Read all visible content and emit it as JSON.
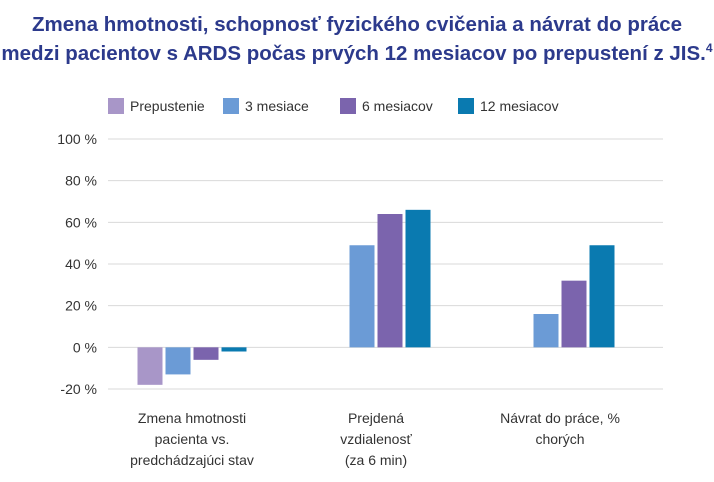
{
  "title_line1": "Zmena hmotnosti, schopnosť fyzického cvičenia a návrat do práce",
  "title_line2": "medzi pacientov s ARDS počas prvých 12 mesiacov po prepustení z JIS.",
  "title_ref": "4",
  "chart_data": {
    "type": "bar",
    "categories": [
      "Zmena hmotnosti pacienta vs. predchádzajúci stav",
      "Prejdená vzdialenosť (za 6 min)",
      "Návrat do práce, % chorých"
    ],
    "category_lines": [
      [
        "Zmena hmotnosti",
        "pacienta  vs.",
        "predchádzajúci stav"
      ],
      [
        "Prejdená",
        "vzdialenosť",
        "(za 6 min)"
      ],
      [
        "Návrat do práce, %",
        "chorých"
      ]
    ],
    "series": [
      {
        "name": "Prepustenie",
        "color": "#a896c8",
        "values": [
          -18,
          null,
          null
        ]
      },
      {
        "name": "3 mesiace",
        "color": "#6b9bd6",
        "values": [
          -13,
          49,
          16
        ]
      },
      {
        "name": "6 mesiacov",
        "color": "#7b64ad",
        "values": [
          -6,
          64,
          32
        ]
      },
      {
        "name": "12 mesiacov",
        "color": "#0a7ab0",
        "values": [
          -2,
          66,
          49
        ]
      }
    ],
    "yticks": [
      "100 %",
      "80 %",
      "60 %",
      "40 %",
      "20 %",
      "0 %",
      "-20 %"
    ],
    "ytick_values": [
      100,
      80,
      60,
      40,
      20,
      0,
      -20
    ],
    "ylim": [
      -20,
      100
    ],
    "grid": true,
    "legend_position": "top"
  }
}
